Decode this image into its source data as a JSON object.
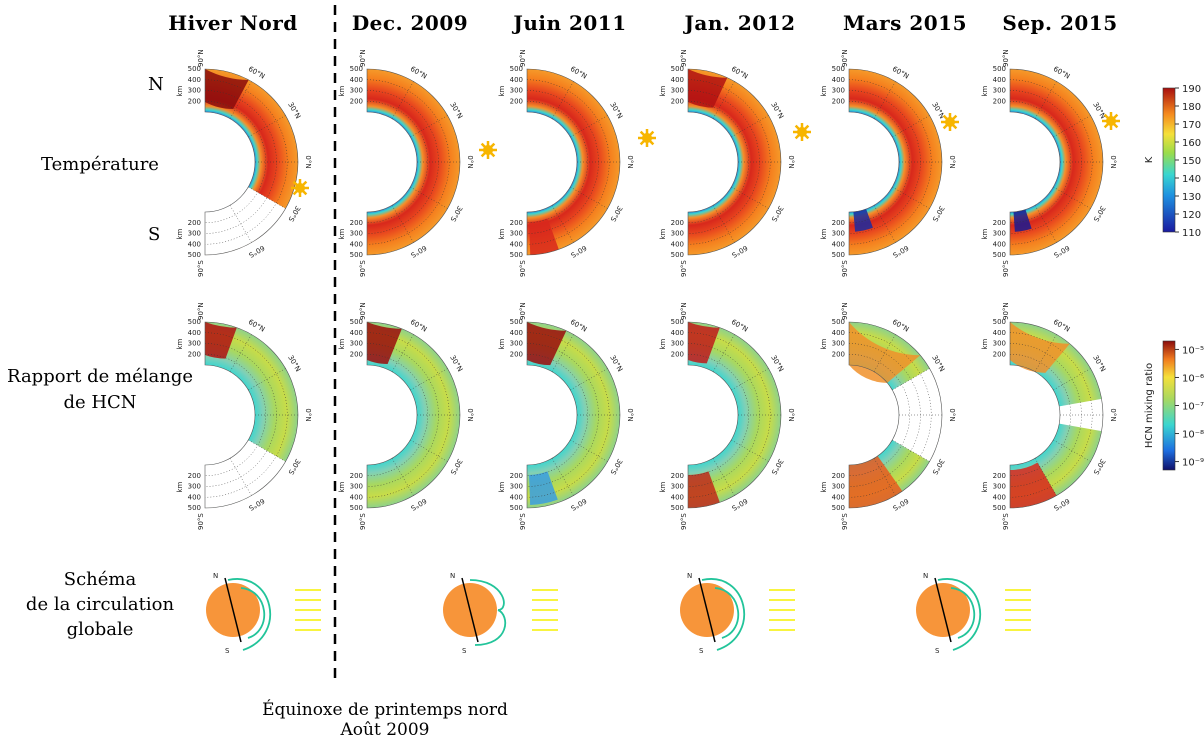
{
  "columns": [
    "Hiver Nord",
    "Dec. 2009",
    "Juin 2011",
    "Jan. 2012",
    "Mars 2015",
    "Sep. 2015"
  ],
  "rows": [
    [
      "Température"
    ],
    [
      "Rapport de mélange",
      "de HCN"
    ],
    [
      "Schéma",
      "de la circulation",
      "globale"
    ]
  ],
  "hemisphere_labels": [
    "N",
    "S"
  ],
  "latitude_labels": [
    "90°N",
    "60°N",
    "30°N",
    "0°N",
    "30°S",
    "60°S",
    "90°S"
  ],
  "altitude_labels": [
    "200",
    "300",
    "400",
    "500"
  ],
  "altitude_unit": "km",
  "temperature_colorbar": {
    "label": "K",
    "lim": [
      110,
      190
    ],
    "ticks": [
      110,
      120,
      130,
      140,
      150,
      160,
      170,
      180,
      190
    ]
  },
  "hcn_colorbar": {
    "label": "HCN mixing ratio",
    "log": true,
    "lim": [
      5e-10,
      2e-05
    ],
    "ticks": [
      {
        "value": 1e-09,
        "label": "10⁻⁹"
      },
      {
        "value": 1e-08,
        "label": "10⁻⁸"
      },
      {
        "value": 1e-07,
        "label": "10⁻⁷"
      },
      {
        "value": 1e-06,
        "label": "10⁻⁶"
      },
      {
        "value": 1e-05,
        "label": "10⁻⁵"
      }
    ]
  },
  "schema_labels": [
    "N",
    "S"
  ],
  "footer": [
    "Équinoxe de printemps nord",
    "Août 2009"
  ]
}
